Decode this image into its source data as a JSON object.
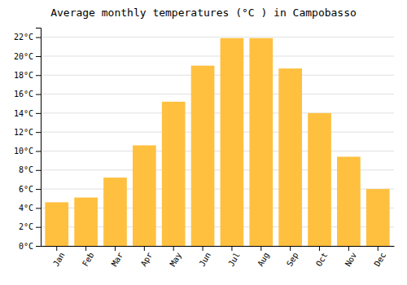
{
  "chart_data": {
    "type": "bar",
    "title": "Average monthly temperatures (°C ) in Campobasso",
    "categories": [
      "Jan",
      "Feb",
      "Mar",
      "Apr",
      "May",
      "Jun",
      "Jul",
      "Aug",
      "Sep",
      "Oct",
      "Nov",
      "Dec"
    ],
    "values": [
      4.6,
      5.1,
      7.2,
      10.6,
      15.2,
      19.0,
      21.9,
      21.9,
      18.7,
      14.0,
      9.4,
      6.0
    ],
    "color": "#FFC040",
    "ylim": [
      0,
      23
    ],
    "yticks": [
      {
        "value": 0,
        "label": "0°C"
      },
      {
        "value": 2,
        "label": "2°C"
      },
      {
        "value": 4,
        "label": "4°C"
      },
      {
        "value": 6,
        "label": "6°C"
      },
      {
        "value": 8,
        "label": "8°C"
      },
      {
        "value": 10,
        "label": "10°C"
      },
      {
        "value": 12,
        "label": "12°C"
      },
      {
        "value": 14,
        "label": "14°C"
      },
      {
        "value": 16,
        "label": "16°C"
      },
      {
        "value": 18,
        "label": "18°C"
      },
      {
        "value": 20,
        "label": "20°C"
      },
      {
        "value": 22,
        "label": "22°C"
      }
    ],
    "grid": true
  }
}
